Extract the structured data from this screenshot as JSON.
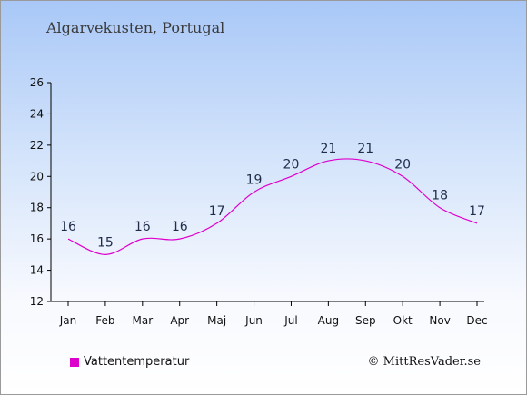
{
  "header": {
    "title": "Algarvekusten, Portugal"
  },
  "footer": {
    "credit": "© MittResVader.se"
  },
  "colors": {
    "series": "#dd00cc",
    "axis": "#000000",
    "label": "#1f2d4a"
  },
  "chart_data": {
    "type": "line",
    "title": "Algarvekusten, Portugal",
    "xlabel": "",
    "ylabel": "",
    "categories": [
      "Jan",
      "Feb",
      "Mar",
      "Apr",
      "Maj",
      "Jun",
      "Jul",
      "Aug",
      "Sep",
      "Okt",
      "Nov",
      "Dec"
    ],
    "series": [
      {
        "name": "Vattentemperatur",
        "values": [
          16,
          15,
          16,
          16,
          17,
          19,
          20,
          21,
          21,
          20,
          18,
          17
        ]
      }
    ],
    "ylim": [
      12,
      26
    ],
    "yticks": [
      12,
      14,
      16,
      18,
      20,
      22,
      24,
      26
    ],
    "grid": false,
    "legend_position": "bottom-left"
  }
}
